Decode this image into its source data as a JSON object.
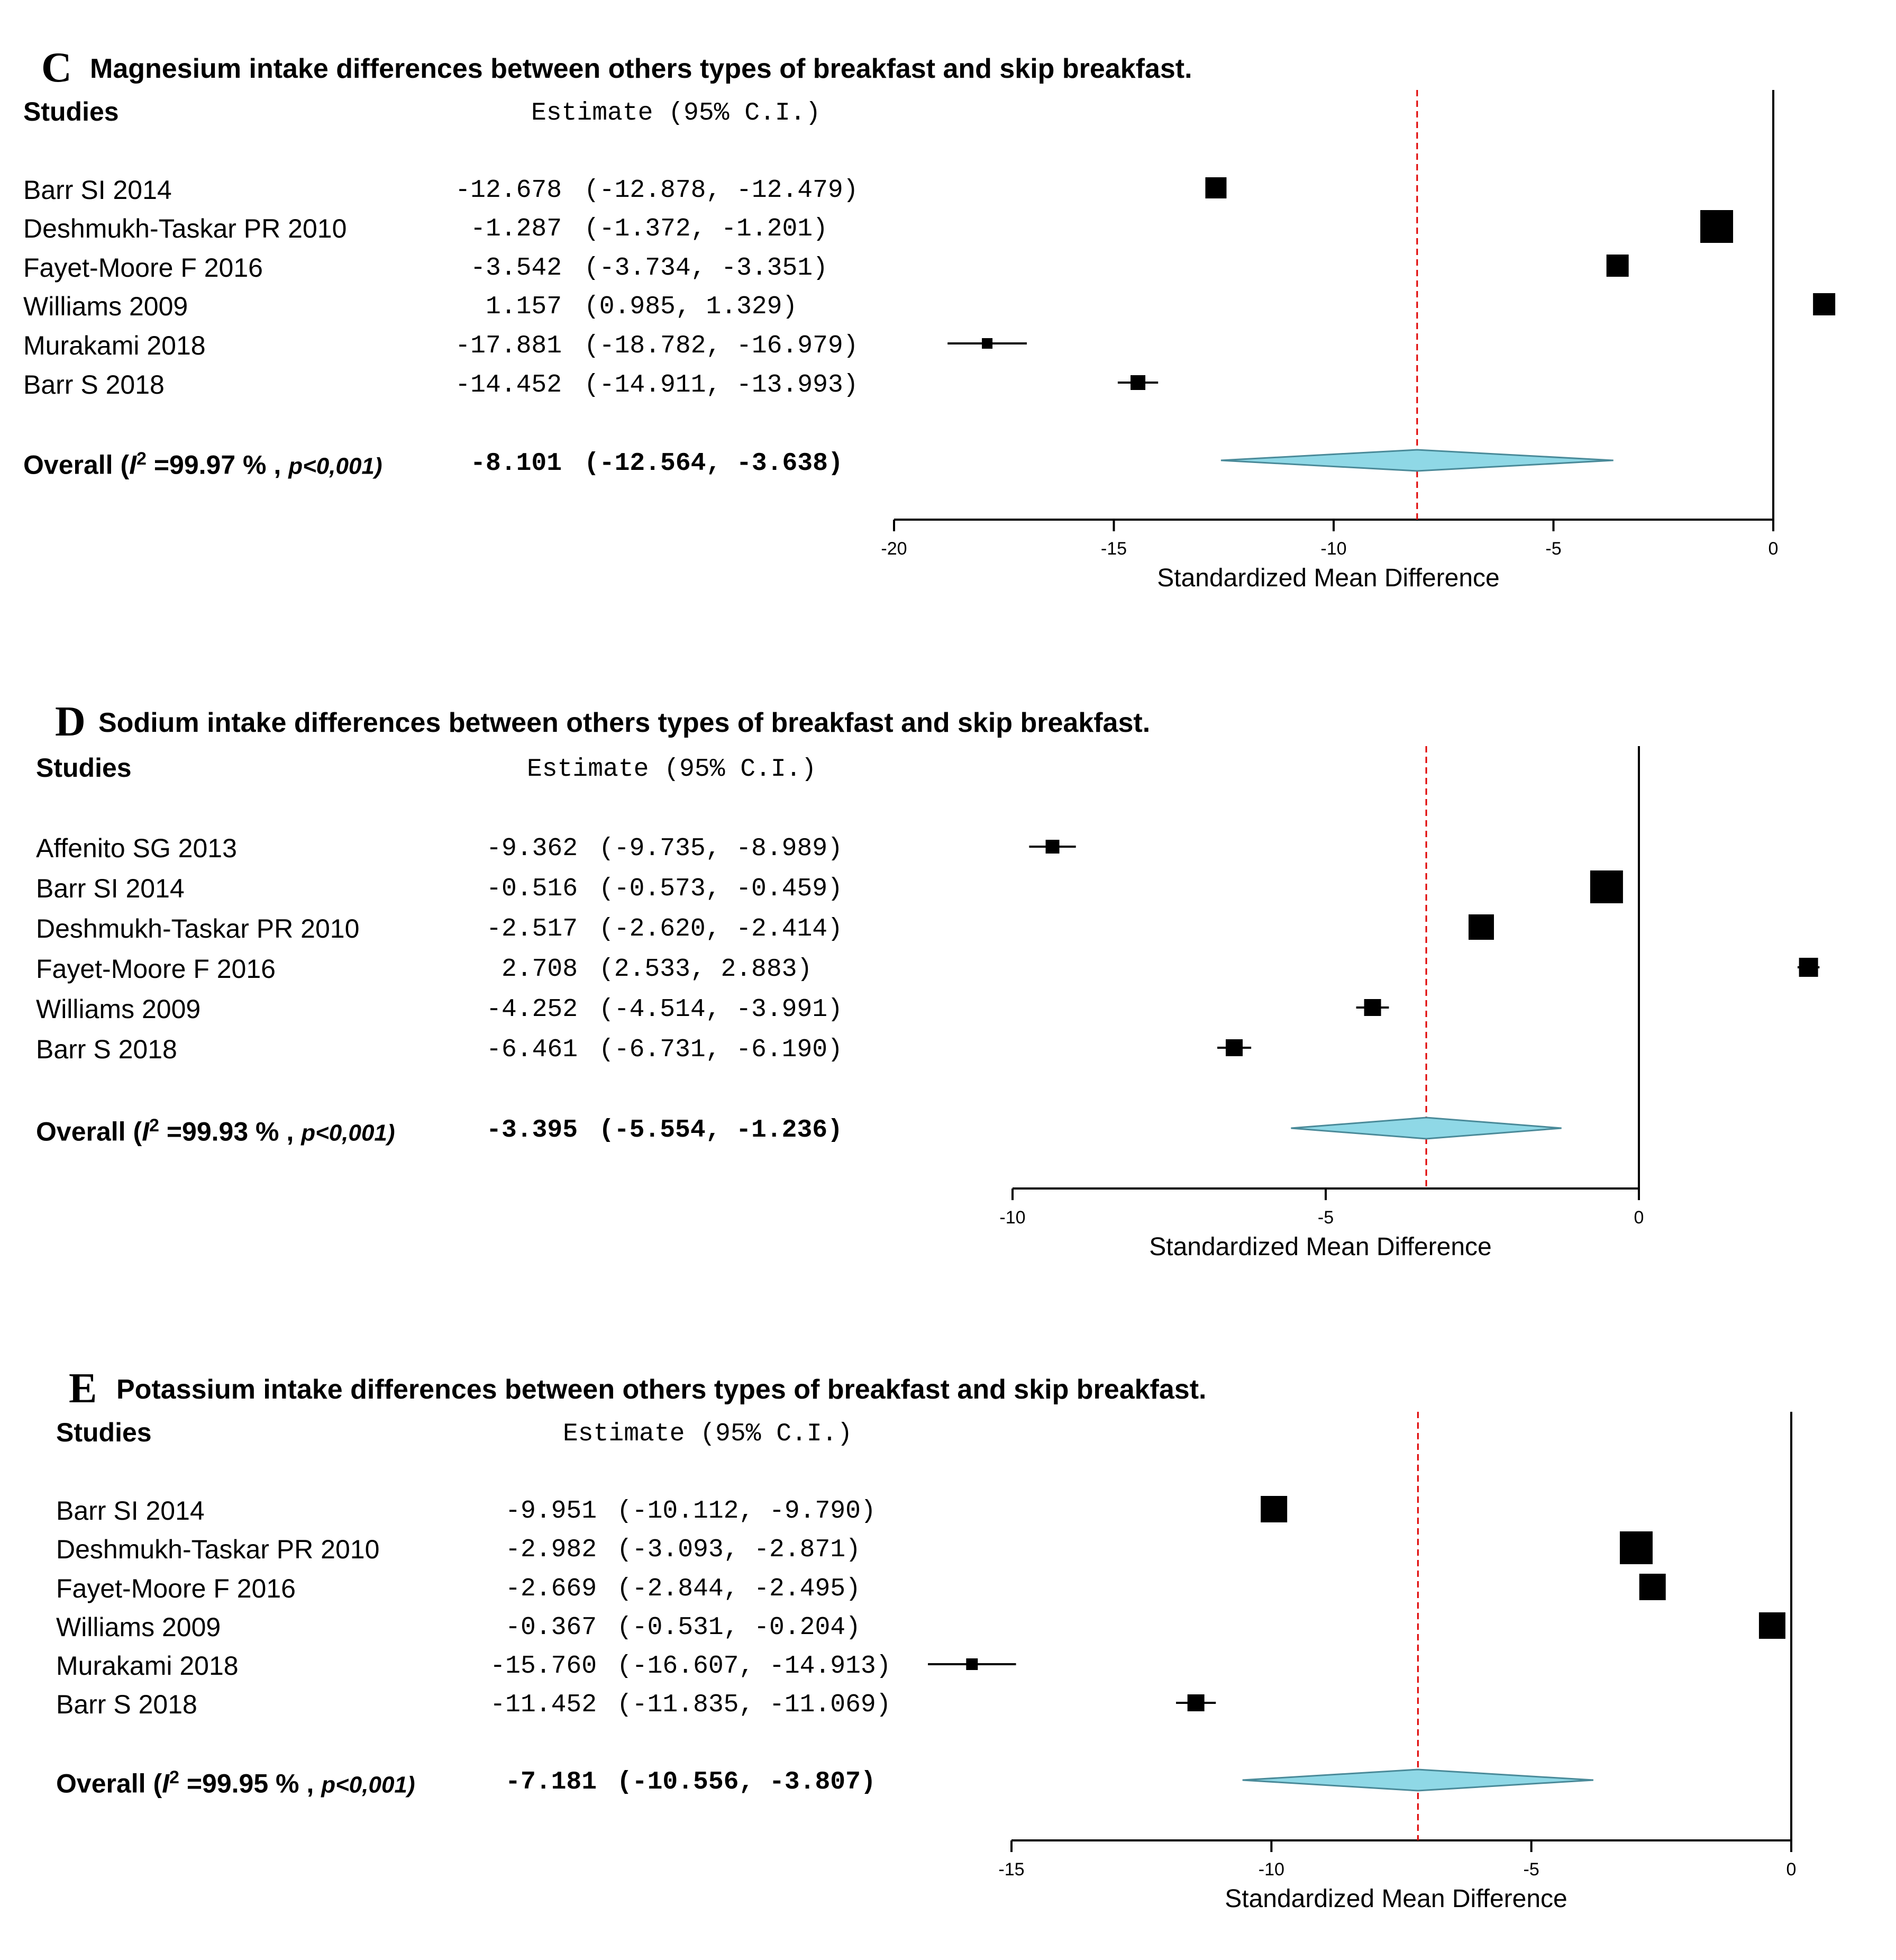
{
  "chart_data": [
    {
      "type": "forest",
      "letter": "C",
      "title": "Magnesium intake differences between others types of breakfast and skip breakfast.",
      "studies_header": "Studies",
      "estimate_header": "Estimate (95% C.I.)",
      "xlabel": "Standardized Mean Difference",
      "xlim": [
        -20,
        0
      ],
      "xticks": [
        -20,
        -15,
        -10,
        -5,
        0
      ],
      "xtick_labels": [
        "-20",
        "-15",
        "-10",
        "-5",
        "0"
      ],
      "studies": [
        {
          "name": "Barr SI 2014",
          "est": -12.678,
          "lo": -12.878,
          "hi": -12.479,
          "est_text": "-12.678",
          "ci_text": "(-12.878, -12.479)"
        },
        {
          "name": "Deshmukh-Taskar PR 2010",
          "est": -1.287,
          "lo": -1.372,
          "hi": -1.201,
          "est_text": "-1.287",
          "ci_text": "(-1.372, -1.201)"
        },
        {
          "name": "Fayet-Moore F 2016",
          "est": -3.542,
          "lo": -3.734,
          "hi": -3.351,
          "est_text": "-3.542",
          "ci_text": "(-3.734, -3.351)"
        },
        {
          "name": "Williams 2009",
          "est": 1.157,
          "lo": 0.985,
          "hi": 1.329,
          "est_text": "1.157",
          "ci_text": "(0.985, 1.329)"
        },
        {
          "name": "Murakami 2018",
          "est": -17.881,
          "lo": -18.782,
          "hi": -16.979,
          "est_text": "-17.881",
          "ci_text": "(-18.782, -16.979)"
        },
        {
          "name": "Barr S 2018",
          "est": -14.452,
          "lo": -14.911,
          "hi": -13.993,
          "est_text": "-14.452",
          "ci_text": "(-14.911, -13.993)"
        }
      ],
      "overall": {
        "label_prefix": "Overall (",
        "i_symbol": "I",
        "i_sup": "2",
        "i2_text": "=99.97 % ,",
        "p_text": "p<0,001)",
        "est": -8.101,
        "lo": -12.564,
        "hi": -3.638,
        "est_text": "-8.101",
        "ci_text": "(-12.564, -3.638)"
      }
    },
    {
      "type": "forest",
      "letter": "D",
      "title": "Sodium intake differences between others types of breakfast and skip breakfast.",
      "studies_header": "Studies",
      "estimate_header": "Estimate (95% C.I.)",
      "xlabel": "Standardized Mean Difference",
      "xlim": [
        -10,
        0
      ],
      "xticks": [
        -10,
        -5,
        0
      ],
      "xtick_labels": [
        "-10",
        "-5",
        "0"
      ],
      "studies": [
        {
          "name": "Affenito  SG 2013",
          "est": -9.362,
          "lo": -9.735,
          "hi": -8.989,
          "est_text": "-9.362",
          "ci_text": "(-9.735, -8.989)"
        },
        {
          "name": "Barr SI 2014",
          "est": -0.516,
          "lo": -0.573,
          "hi": -0.459,
          "est_text": "-0.516",
          "ci_text": "(-0.573, -0.459)"
        },
        {
          "name": "Deshmukh-Taskar PR 2010",
          "est": -2.517,
          "lo": -2.62,
          "hi": -2.414,
          "est_text": "-2.517",
          "ci_text": "(-2.620, -2.414)"
        },
        {
          "name": "Fayet-Moore F 2016",
          "est": 2.708,
          "lo": 2.533,
          "hi": 2.883,
          "est_text": "2.708",
          "ci_text": "(2.533, 2.883)"
        },
        {
          "name": "Williams 2009",
          "est": -4.252,
          "lo": -4.514,
          "hi": -3.991,
          "est_text": "-4.252",
          "ci_text": "(-4.514, -3.991)"
        },
        {
          "name": "Barr S 2018",
          "est": -6.461,
          "lo": -6.731,
          "hi": -6.19,
          "est_text": "-6.461",
          "ci_text": "(-6.731, -6.190)"
        }
      ],
      "overall": {
        "label_prefix": "Overall (",
        "i_symbol": "I",
        "i_sup": "2",
        "i2_text": "=99.93 % ,",
        "p_text": "p<0,001)",
        "est": -3.395,
        "lo": -5.554,
        "hi": -1.236,
        "est_text": "-3.395",
        "ci_text": "(-5.554, -1.236)"
      }
    },
    {
      "type": "forest",
      "letter": "E",
      "title": "Potassium intake differences between others types of breakfast and skip breakfast.",
      "studies_header": "Studies",
      "estimate_header": "Estimate (95% C.I.)",
      "xlabel": "Standardized Mean Difference",
      "xlim": [
        -15,
        0
      ],
      "xticks": [
        -15,
        -10,
        -5,
        0
      ],
      "xtick_labels": [
        "-15",
        "-10",
        "-5",
        "0"
      ],
      "studies": [
        {
          "name": "Barr SI 2014",
          "est": -9.951,
          "lo": -10.112,
          "hi": -9.79,
          "est_text": "-9.951",
          "ci_text": "(-10.112, -9.790)"
        },
        {
          "name": "Deshmukh-Taskar PR 2010",
          "est": -2.982,
          "lo": -3.093,
          "hi": -2.871,
          "est_text": "-2.982",
          "ci_text": "(-3.093, -2.871)"
        },
        {
          "name": "Fayet-Moore F 2016",
          "est": -2.669,
          "lo": -2.844,
          "hi": -2.495,
          "est_text": "-2.669",
          "ci_text": "(-2.844, -2.495)"
        },
        {
          "name": "Williams 2009",
          "est": -0.367,
          "lo": -0.531,
          "hi": -0.204,
          "est_text": "-0.367",
          "ci_text": "(-0.531, -0.204)"
        },
        {
          "name": "Murakami 2018",
          "est": -15.76,
          "lo": -16.607,
          "hi": -14.913,
          "est_text": "-15.760",
          "ci_text": "(-16.607, -14.913)"
        },
        {
          "name": "Barr S 2018",
          "est": -11.452,
          "lo": -11.835,
          "hi": -11.069,
          "est_text": "-11.452",
          "ci_text": "(-11.835, -11.069)"
        }
      ],
      "overall": {
        "label_prefix": "Overall (",
        "i_symbol": "I",
        "i_sup": "2",
        "i2_text": "=99.95 % ,",
        "p_text": "p<0,001)",
        "est": -7.181,
        "lo": -10.556,
        "hi": -3.807,
        "est_text": "-7.181",
        "ci_text": "(-10.556, -3.807)"
      }
    }
  ],
  "colors": {
    "diamond_fill": "#8fd8e6",
    "diamond_stroke": "#4a8a99",
    "ref_line": "#e00000",
    "ink": "#000000"
  }
}
